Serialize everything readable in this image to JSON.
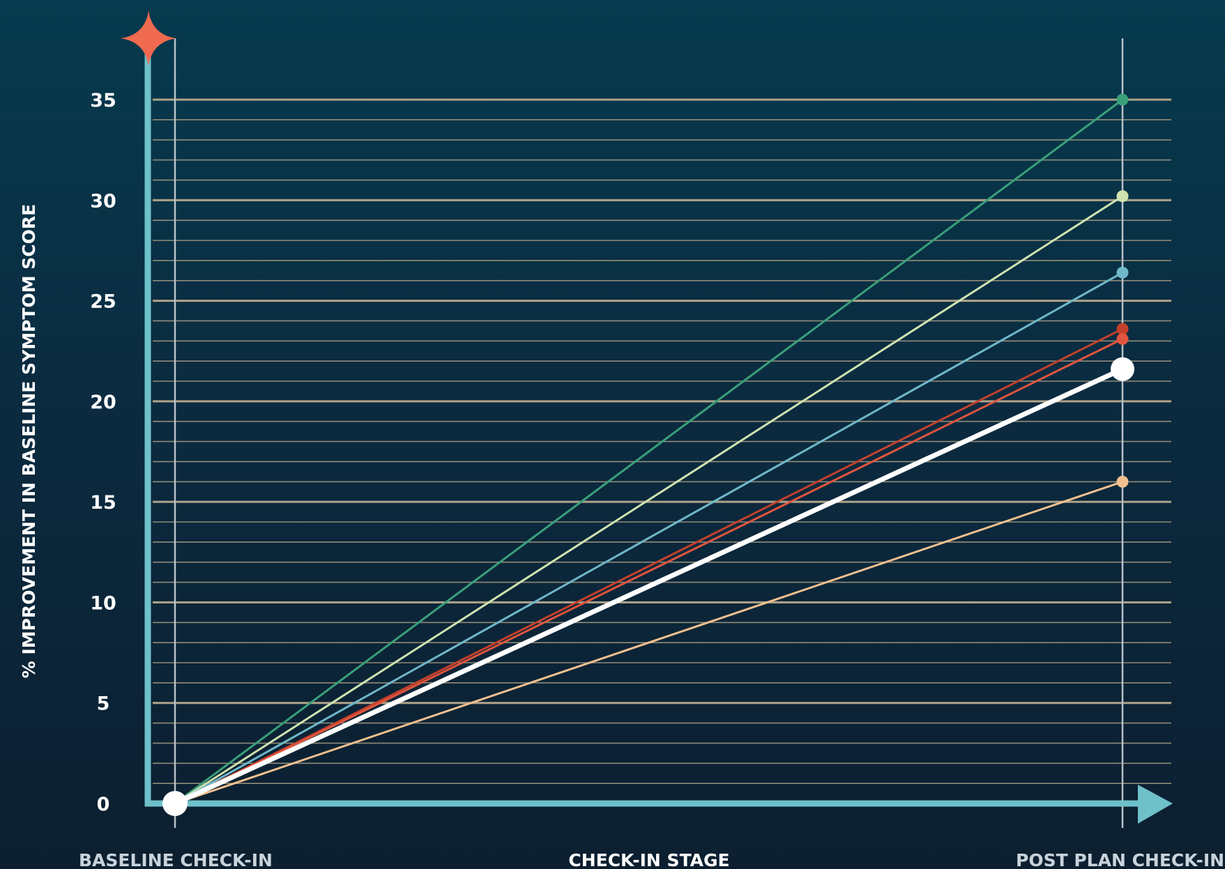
{
  "chart_data": {
    "type": "line",
    "categories": [
      "BASELINE CHECK-IN",
      "POST PLAN CHECK-IN"
    ],
    "xlabel": "CHECK-IN STAGE",
    "ylabel": "% IMPROVEMENT IN BASELINE SYMPTOM SCORE",
    "ylim": [
      0,
      35
    ],
    "yticks": [
      "0",
      "5",
      "10",
      "15",
      "20",
      "25",
      "30",
      "35"
    ],
    "minor_gridlines_per_unit": 1,
    "grid": true,
    "legend": "none",
    "series": [
      {
        "values": [
          0,
          35.0
        ],
        "color": "#3aa07a"
      },
      {
        "values": [
          0,
          30.2
        ],
        "color": "#cfe3b0"
      },
      {
        "values": [
          0,
          26.4
        ],
        "color": "#6fb8c9"
      },
      {
        "values": [
          0,
          23.6
        ],
        "color": "#c4402b"
      },
      {
        "values": [
          0,
          23.1
        ],
        "color": "#e0553f"
      },
      {
        "values": [
          0,
          21.6
        ],
        "color": "#ffffff",
        "highlight": true
      },
      {
        "values": [
          0,
          16.0
        ],
        "color": "#f2c08f"
      }
    ]
  },
  "colors": {
    "background_top": "#063a4e",
    "background_bottom": "#0c1f30",
    "axis": "#6ec0c9",
    "major_grid": "#b9ab8d",
    "minor_grid": "#a89d82",
    "category_line": "#b8c2c9",
    "star": "#ef6a4f"
  }
}
